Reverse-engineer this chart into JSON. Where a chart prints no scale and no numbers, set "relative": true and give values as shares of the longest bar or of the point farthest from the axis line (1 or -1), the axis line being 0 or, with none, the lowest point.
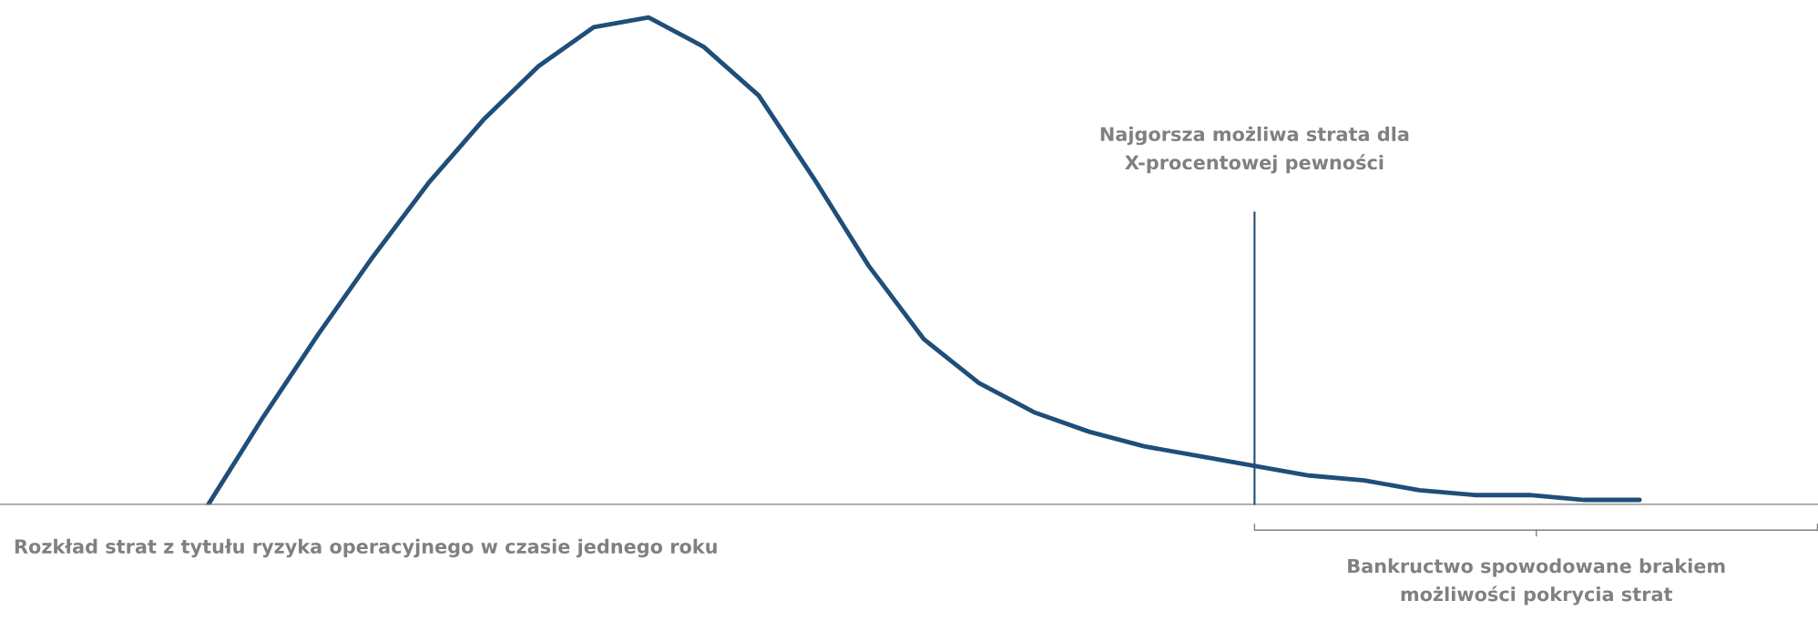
{
  "chart_data": {
    "type": "line",
    "relative": true,
    "categories": [
      null,
      null,
      null,
      null,
      null,
      null,
      null,
      null,
      null,
      null,
      null,
      null,
      null,
      null,
      null,
      null,
      null,
      null,
      null,
      null,
      null,
      null,
      null,
      null,
      null,
      null,
      null
    ],
    "series": [
      {
        "color": "#1f4e79",
        "values": [
          0,
          0.18,
          0.35,
          0.51,
          0.66,
          0.79,
          0.9,
          0.98,
          1.0,
          0.94,
          0.84,
          0.67,
          0.49,
          0.34,
          0.25,
          0.19,
          0.15,
          0.12,
          0.1,
          0.08,
          0.06,
          0.05,
          0.03,
          0.02,
          0.02,
          0.01,
          0.01
        ]
      }
    ],
    "annotations": [
      "Rozkład strat z tytułu ryzyka operacyjnego w czasie jednego roku",
      "Najgorsza możliwa strata dla\nX-procentowej pewności",
      "Bankructwo spowodowane brakiem\nmożliwości pokrycia strat"
    ],
    "legend": false,
    "marker": "none",
    "line_style": "solid"
  }
}
